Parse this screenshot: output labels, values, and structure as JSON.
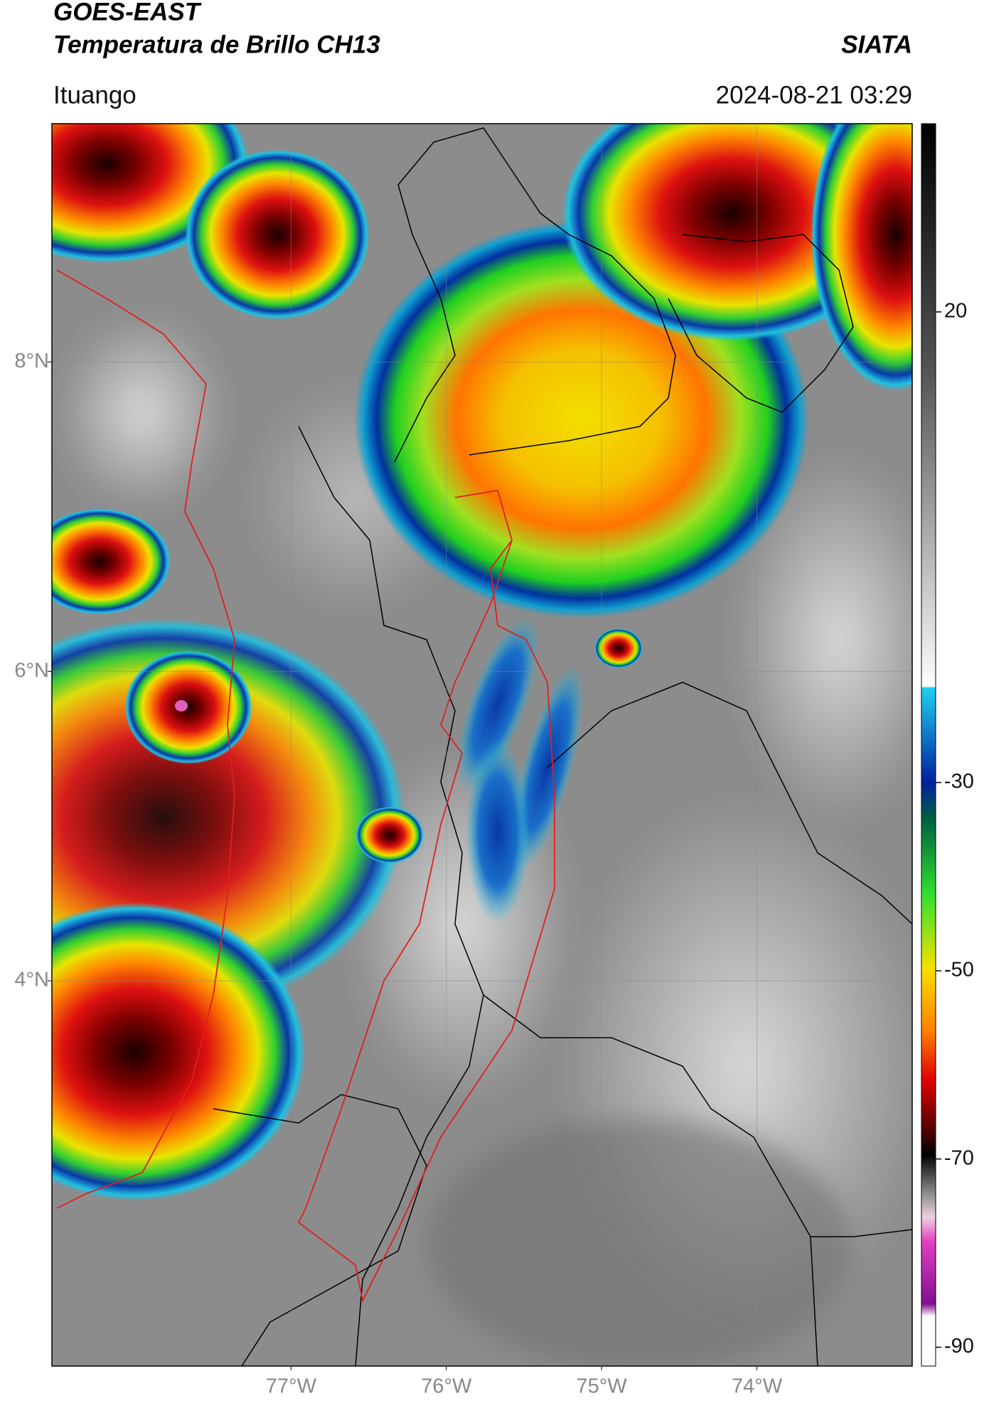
{
  "header": {
    "title_line1": "GOES-EAST",
    "title_line2": "Temperatura de Brillo CH13",
    "agency": "SIATA",
    "location": "Ituango",
    "datetime": "2024-08-21 03:29"
  },
  "map": {
    "xlim": [
      -78.54,
      -73.0
    ],
    "ylim": [
      1.51,
      9.54
    ],
    "xticks": [
      {
        "value": -77,
        "label": "77°W"
      },
      {
        "value": -76,
        "label": "76°W"
      },
      {
        "value": -75,
        "label": "75°W"
      },
      {
        "value": -74,
        "label": "74°W"
      }
    ],
    "yticks": [
      {
        "value": 8,
        "label": "8°N"
      },
      {
        "value": 6,
        "label": "6°N"
      },
      {
        "value": 4,
        "label": "4°N"
      }
    ],
    "grid": true
  },
  "colorbar": {
    "lim": [
      -92,
      40
    ],
    "ticks": [
      20,
      -30,
      -50,
      -70,
      -90
    ]
  }
}
